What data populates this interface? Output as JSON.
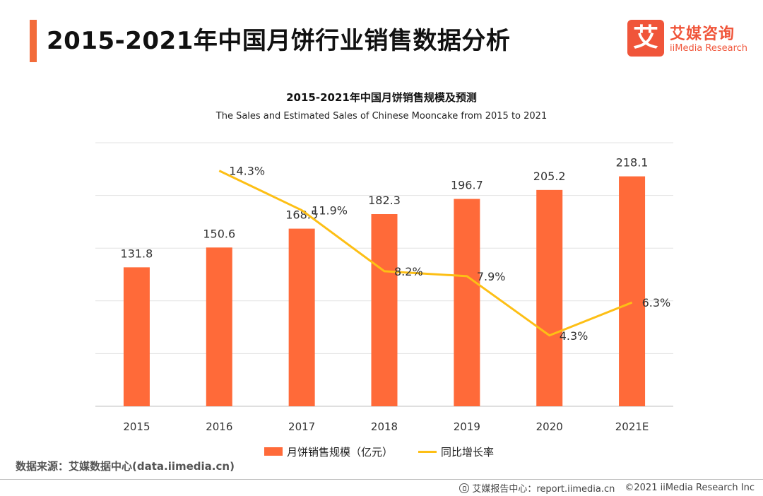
{
  "header": {
    "title": "2015-2021年中国月饼行业销售数据分析",
    "accent_color": "#f26b3a"
  },
  "logo": {
    "mark": "艾",
    "name_cn": "艾媒咨询",
    "name_en": "iiMedia Research",
    "color": "#f0553a"
  },
  "chart_data": {
    "type": "bar",
    "title": "2015-2021年中国月饼销售规模及预测",
    "subtitle": "The Sales and Estimated Sales of Chinese Mooncake from 2015 to 2021",
    "categories": [
      "2015",
      "2016",
      "2017",
      "2018",
      "2019",
      "2020",
      "2021E"
    ],
    "series": [
      {
        "name": "月饼销售规模（亿元）",
        "type": "bar",
        "color": "#ff6a39",
        "values": [
          131.8,
          150.6,
          168.5,
          182.3,
          196.7,
          205.2,
          218.1
        ],
        "labels": [
          "131.8",
          "150.6",
          "168.5",
          "182.3",
          "196.7",
          "205.2",
          "218.1"
        ]
      },
      {
        "name": "同比增长率",
        "type": "line",
        "color": "#fdbf15",
        "values": [
          null,
          14.3,
          11.9,
          8.2,
          7.9,
          4.3,
          6.3
        ],
        "labels": [
          "",
          "14.3%",
          "11.9%",
          "8.2%",
          "7.9%",
          "4.3%",
          "6.3%"
        ]
      }
    ],
    "ylim_bar": [
      0,
      250
    ],
    "ylim_line": [
      0,
      16
    ],
    "grid": true,
    "legend": "bottom"
  },
  "source": "数据来源：艾媒数据中心(data.iimedia.cn)",
  "footer": {
    "report": "艾媒报告中心：report.iimedia.cn",
    "copyright": "©2021  iiMedia Research  Inc"
  }
}
